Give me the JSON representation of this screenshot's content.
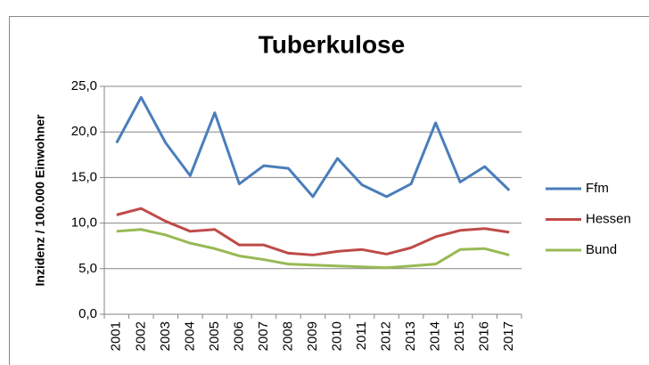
{
  "chart_data": {
    "type": "line",
    "title": "Tuberkulose",
    "y_label": "Inzidenz / 100.000 Einwohner",
    "categories": [
      "2001",
      "2002",
      "2003",
      "2004",
      "2005",
      "2006",
      "2007",
      "2008",
      "2009",
      "2010",
      "2011",
      "2012",
      "2013",
      "2014",
      "2015",
      "2016",
      "2017"
    ],
    "series": [
      {
        "name": "Ffm",
        "color": "#4a7ebb",
        "values": [
          18.8,
          23.8,
          18.8,
          15.2,
          22.1,
          14.3,
          16.3,
          16.0,
          12.9,
          17.1,
          14.2,
          12.9,
          14.3,
          21.0,
          14.5,
          16.2,
          13.6
        ]
      },
      {
        "name": "Hessen",
        "color": "#be4b48",
        "values": [
          10.9,
          11.6,
          10.2,
          9.1,
          9.3,
          7.6,
          7.6,
          6.7,
          6.5,
          6.9,
          7.1,
          6.6,
          7.3,
          8.5,
          9.2,
          9.4,
          9.0
        ]
      },
      {
        "name": "Bund",
        "color": "#98b954",
        "values": [
          9.1,
          9.3,
          8.7,
          7.8,
          7.2,
          6.4,
          6.0,
          5.5,
          5.4,
          5.3,
          5.2,
          5.1,
          5.3,
          5.5,
          7.1,
          7.2,
          6.5
        ]
      }
    ],
    "ylim": [
      0,
      25
    ],
    "yticks": [
      {
        "value": 0,
        "label": "0,0"
      },
      {
        "value": 5,
        "label": "5,0"
      },
      {
        "value": 10,
        "label": "10,0"
      },
      {
        "value": 15,
        "label": "15,0"
      },
      {
        "value": 20,
        "label": "20,0"
      },
      {
        "value": 25,
        "label": "25,0"
      }
    ],
    "grid": true,
    "legend": "right"
  }
}
